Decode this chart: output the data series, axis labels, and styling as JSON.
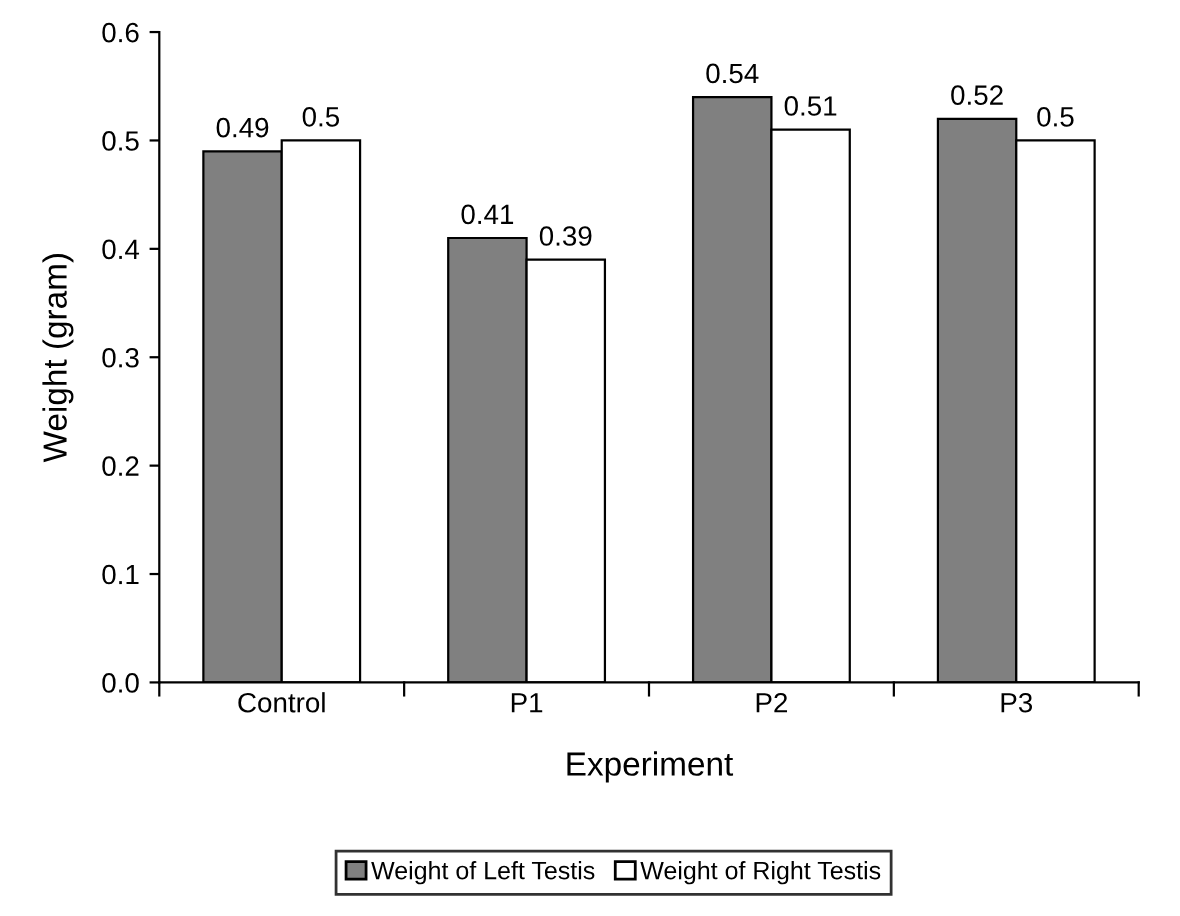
{
  "chart_data": {
    "type": "bar",
    "xlabel": "Experiment",
    "ylabel": "Weight (gram)",
    "categories": [
      "Control",
      "P1",
      "P2",
      "P3"
    ],
    "series": [
      {
        "name": "Weight of Left Testis",
        "color": "#808080",
        "values": [
          0.49,
          0.41,
          0.54,
          0.52
        ]
      },
      {
        "name": "Weight of Right Testis",
        "color": "#ffffff",
        "values": [
          0.5,
          0.39,
          0.51,
          0.5
        ]
      }
    ],
    "ylim": [
      0.0,
      0.6
    ],
    "yticks": [
      {
        "value": 0.0,
        "label": "0.0"
      },
      0.1,
      0.2,
      0.3,
      0.4,
      0.5,
      0.6
    ],
    "data_labels": true,
    "legend": "bottom",
    "grid": false
  }
}
